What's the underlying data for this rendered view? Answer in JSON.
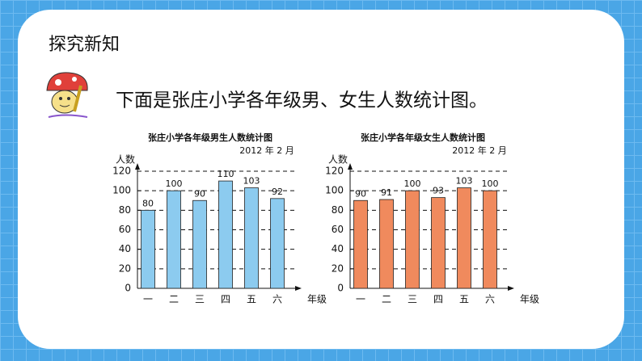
{
  "header": {
    "title": "探究新知",
    "prompt": "下面是张庄小学各年级男、女生人数统计图。"
  },
  "chart_data": [
    {
      "type": "bar",
      "title": "张庄小学各年级男生人数统计图",
      "subtitle": "2012 年 2 月",
      "y_label": "人数",
      "x_label": "年级",
      "categories": [
        "一",
        "二",
        "三",
        "四",
        "五",
        "六"
      ],
      "values": [
        80,
        100,
        90,
        110,
        103,
        92
      ],
      "color": "#8ccbef",
      "ylim": [
        0,
        120
      ],
      "yticks": [
        0,
        20,
        40,
        60,
        80,
        100,
        120
      ],
      "grid": true
    },
    {
      "type": "bar",
      "title": "张庄小学各年级女生人数统计图",
      "subtitle": "2012 年 2 月",
      "y_label": "人数",
      "x_label": "年级",
      "categories": [
        "一",
        "二",
        "三",
        "四",
        "五",
        "六"
      ],
      "values": [
        90,
        91,
        100,
        93,
        103,
        100
      ],
      "color": "#f08a5d",
      "ylim": [
        0,
        120
      ],
      "yticks": [
        0,
        20,
        40,
        60,
        80,
        100,
        120
      ],
      "grid": true
    }
  ]
}
